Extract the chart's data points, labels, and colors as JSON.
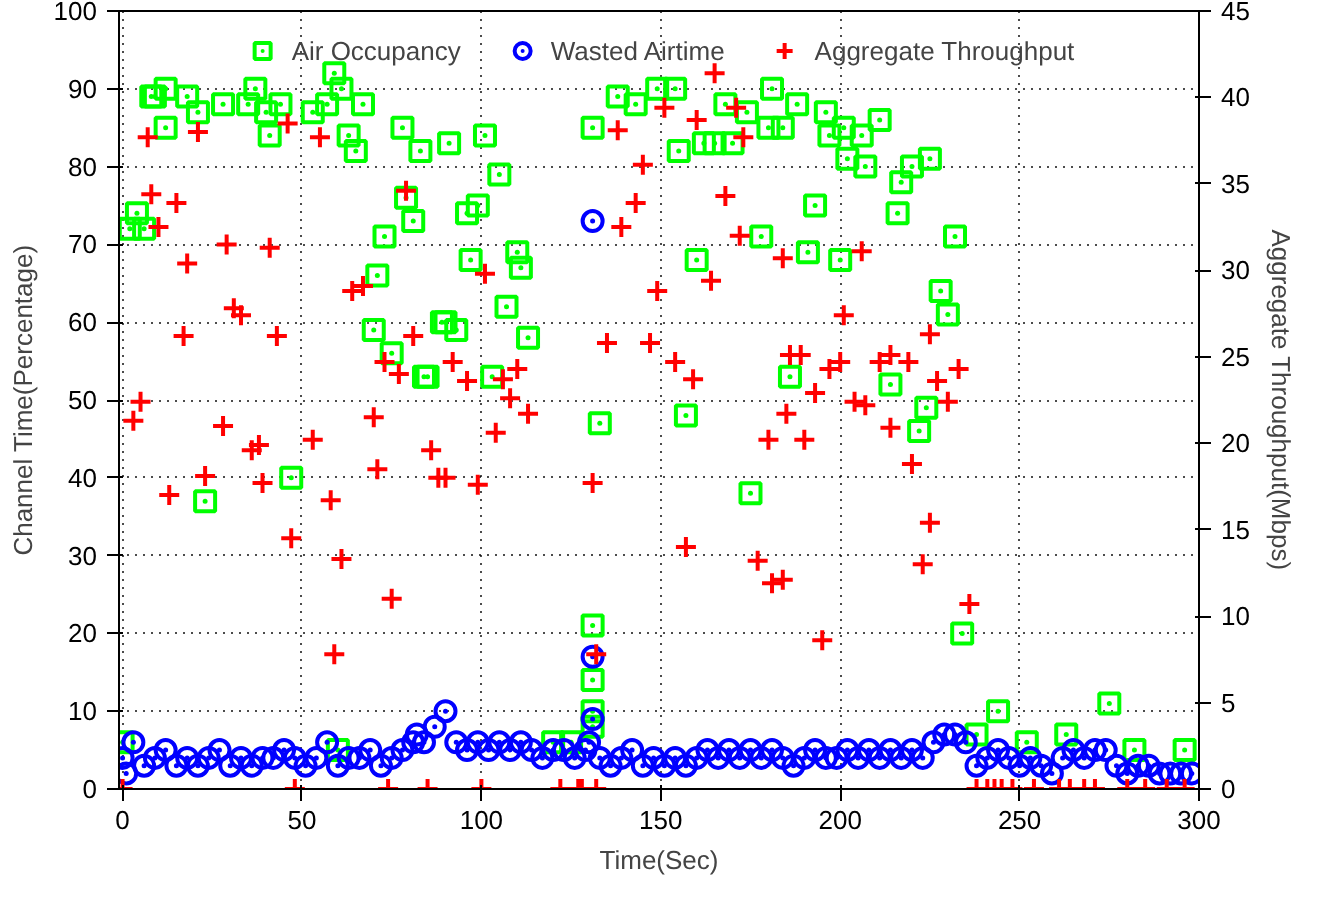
{
  "chart_data": {
    "type": "scatter",
    "xlabel": "Time(Sec)",
    "ylabel": "Channel Time(Percentage)",
    "y2label": "Aggregate Throughput(Mbps)",
    "xlim": [
      -1,
      300
    ],
    "xticks": [
      0,
      50,
      100,
      150,
      200,
      250,
      300
    ],
    "ylim": [
      0,
      100
    ],
    "yticks": [
      0,
      10,
      20,
      30,
      40,
      50,
      60,
      70,
      80,
      90,
      100
    ],
    "y2lim": [
      0,
      45
    ],
    "y2ticks": [
      0,
      5,
      10,
      15,
      20,
      25,
      30,
      35,
      40,
      45
    ],
    "grid": true,
    "legend": "top",
    "series": [
      {
        "name": "Air Occupancy",
        "color": "#00ff00",
        "marker": "square",
        "x": [
          0,
          2,
          4,
          6,
          8,
          9,
          12,
          12,
          18,
          21,
          23,
          28,
          35,
          37,
          40,
          41,
          44,
          47,
          53,
          57,
          59,
          60,
          61,
          63,
          65,
          67,
          70,
          71,
          73,
          75,
          78,
          79,
          81,
          83,
          84,
          85,
          89,
          90,
          91,
          93,
          96,
          97,
          99,
          101,
          103,
          105,
          107,
          110,
          111,
          113,
          120,
          125,
          131,
          131,
          131,
          131,
          131,
          133,
          138,
          143,
          149,
          154,
          155,
          157,
          160,
          162,
          165,
          168,
          170,
          174,
          175,
          178,
          180,
          181,
          184,
          186,
          188,
          191,
          193,
          196,
          197,
          200,
          201,
          202,
          206,
          207,
          211,
          214,
          216,
          217,
          220,
          222,
          224,
          225,
          228,
          230,
          232,
          234,
          238,
          244,
          252,
          263,
          275,
          282,
          296
        ],
        "values": [
          6,
          72,
          74,
          72,
          89,
          89,
          90,
          85,
          89,
          87,
          37,
          88,
          88,
          90,
          87,
          84,
          88,
          40,
          87,
          88,
          92,
          5,
          90,
          84,
          82,
          88,
          59,
          66,
          71,
          56,
          85,
          76,
          73,
          82,
          53,
          53,
          60,
          60,
          83,
          59,
          74,
          68,
          75,
          84,
          53,
          79,
          62,
          69,
          67,
          58,
          6,
          6,
          85,
          21,
          14,
          10,
          8,
          47,
          89,
          88,
          90,
          90,
          82,
          48,
          68,
          83,
          83,
          88,
          83,
          87,
          38,
          71,
          85,
          90,
          85,
          53,
          88,
          69,
          75,
          87,
          84,
          68,
          85,
          81,
          84,
          80,
          86,
          52,
          74,
          78,
          80,
          46,
          49,
          81,
          64,
          61,
          71,
          20,
          7,
          10,
          6,
          7,
          11,
          5,
          5
        ]
      },
      {
        "name": "Wasted Airtime",
        "color": "#0000ff",
        "marker": "circle",
        "x": [
          0,
          1,
          3,
          6,
          9,
          12,
          15,
          18,
          21,
          24,
          27,
          30,
          33,
          36,
          39,
          42,
          45,
          48,
          51,
          54,
          57,
          60,
          63,
          66,
          69,
          72,
          75,
          78,
          81,
          82,
          84,
          87,
          90,
          93,
          96,
          99,
          102,
          105,
          108,
          111,
          114,
          117,
          120,
          123,
          126,
          129,
          130,
          131,
          131,
          131,
          133,
          136,
          139,
          142,
          145,
          148,
          151,
          154,
          157,
          160,
          163,
          166,
          169,
          172,
          175,
          178,
          181,
          184,
          187,
          190,
          193,
          196,
          199,
          202,
          205,
          208,
          211,
          214,
          217,
          220,
          223,
          226,
          229,
          232,
          235,
          238,
          241,
          244,
          247,
          250,
          253,
          256,
          259,
          262,
          265,
          268,
          271,
          274,
          277,
          280,
          283,
          286,
          289,
          292,
          295,
          298
        ],
        "values": [
          4,
          2,
          6,
          3,
          4,
          5,
          3,
          4,
          3,
          4,
          5,
          3,
          4,
          3,
          4,
          4,
          5,
          4,
          3,
          4,
          6,
          3,
          4,
          4,
          5,
          3,
          4,
          5,
          6,
          7,
          6,
          8,
          10,
          6,
          5,
          6,
          5,
          6,
          5,
          6,
          5,
          4,
          5,
          5,
          4,
          5,
          6,
          73,
          17,
          9,
          4,
          3,
          4,
          5,
          3,
          4,
          3,
          4,
          3,
          4,
          5,
          4,
          5,
          4,
          5,
          4,
          5,
          4,
          3,
          4,
          5,
          4,
          4,
          5,
          4,
          5,
          4,
          5,
          4,
          5,
          4,
          6,
          7,
          7,
          6,
          3,
          4,
          5,
          4,
          3,
          4,
          3,
          2,
          4,
          5,
          4,
          5,
          5,
          3,
          2,
          3,
          3,
          2,
          2,
          2,
          2
        ]
      },
      {
        "name": "Aggregate Throughput",
        "color": "#ff0000",
        "marker": "cross",
        "axis": "y2",
        "x": [
          0,
          3,
          5,
          7,
          8,
          10,
          13,
          15,
          17,
          18,
          21,
          23,
          28,
          29,
          31,
          33,
          36,
          38,
          39,
          41,
          43,
          46,
          47,
          48,
          53,
          55,
          58,
          59,
          61,
          64,
          67,
          70,
          71,
          73,
          74,
          75,
          77,
          79,
          81,
          85,
          86,
          88,
          90,
          92,
          96,
          99,
          100,
          101,
          104,
          106,
          108,
          110,
          113,
          122,
          127,
          128,
          131,
          132,
          132,
          135,
          138,
          139,
          143,
          145,
          147,
          149,
          151,
          154,
          157,
          159,
          160,
          164,
          165,
          168,
          171,
          172,
          173,
          177,
          180,
          181,
          184,
          184,
          185,
          186,
          189,
          190,
          193,
          195,
          197,
          200,
          201,
          204,
          206,
          207,
          211,
          214,
          214,
          219,
          220,
          223,
          225,
          225,
          227,
          230,
          233,
          236,
          238,
          241,
          243,
          245,
          248,
          254,
          261,
          264,
          268,
          271,
          280,
          285,
          291,
          296
        ],
        "values": [
          0,
          21.3,
          22.4,
          37.7,
          34.4,
          32.5,
          17,
          33.9,
          26.2,
          30.4,
          38,
          18.1,
          21,
          31.5,
          27.8,
          27.4,
          19.6,
          19.9,
          17.7,
          31.3,
          26.2,
          38.5,
          14.5,
          0,
          20.2,
          37.7,
          16.7,
          7.8,
          13.3,
          28.8,
          29.1,
          21.5,
          18.5,
          24.7,
          0,
          11,
          24,
          34.6,
          26.2,
          0,
          19.6,
          18,
          18,
          24.7,
          23.6,
          17.6,
          0,
          29.8,
          20.6,
          23.7,
          22.6,
          24.3,
          21.7,
          0,
          0,
          0,
          17.7,
          7.8,
          0,
          25.8,
          38.1,
          32.5,
          33.9,
          36.1,
          25.8,
          28.8,
          39.4,
          24.7,
          14,
          23.7,
          38.7,
          29.4,
          41.4,
          34.3,
          39.4,
          32,
          37.7,
          13.2,
          20.2,
          11.9,
          30.7,
          12.1,
          21.7,
          25.1,
          25.1,
          20.2,
          22.9,
          8.6,
          24.3,
          24.7,
          27.4,
          22.4,
          31.1,
          22.2,
          24.7,
          25.1,
          20.9,
          24.7,
          18.8,
          13,
          15.4,
          26.3,
          23.6,
          22.4,
          24.3,
          10.7,
          0,
          0,
          0,
          0,
          0,
          0,
          0,
          0,
          0,
          0,
          0,
          0,
          0,
          0
        ]
      }
    ]
  }
}
